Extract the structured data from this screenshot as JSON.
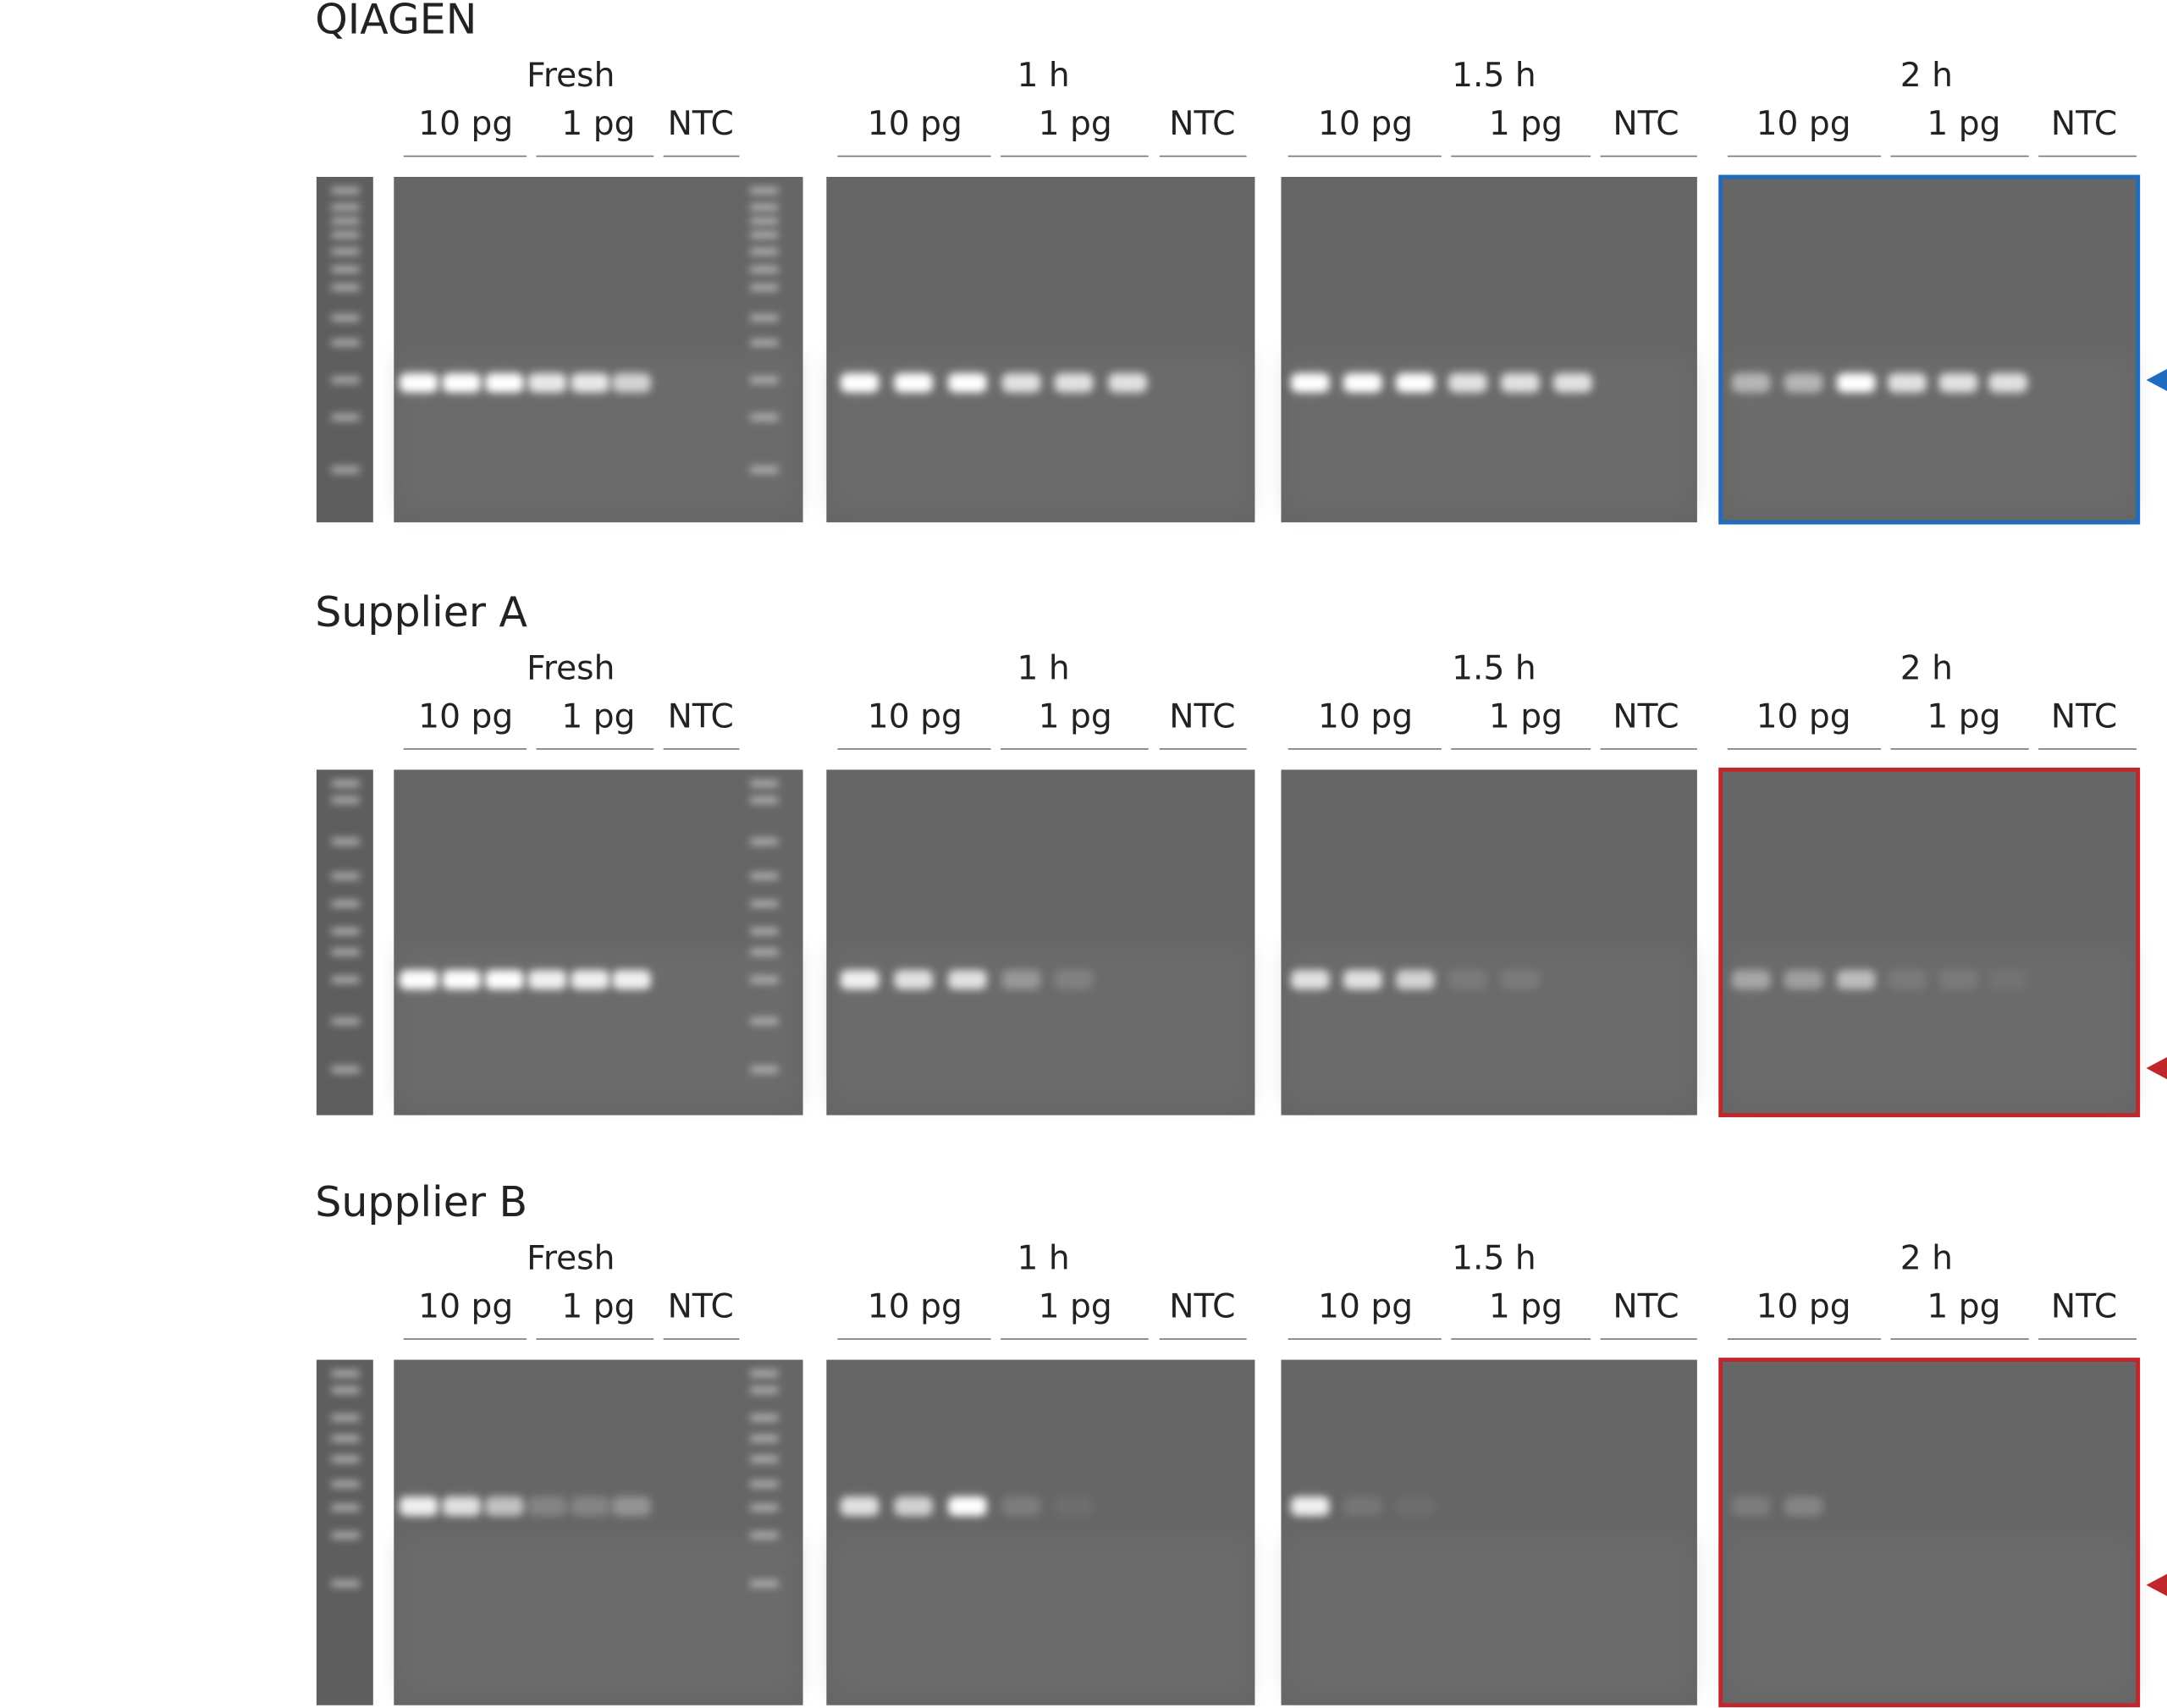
{
  "panels": [
    {
      "title": "QIAGEN",
      "groups": [
        {
          "time": "Fresh",
          "lanes": [
            "10 pg",
            "1 pg",
            "NTC"
          ]
        },
        {
          "time": "1 h",
          "lanes": [
            "10 pg",
            "1 pg",
            "NTC"
          ]
        },
        {
          "time": "1.5 h",
          "lanes": [
            "10 pg",
            "1 pg",
            "NTC"
          ]
        },
        {
          "time": "2 h",
          "lanes": [
            "10 pg",
            "1 pg",
            "NTC"
          ]
        }
      ]
    },
    {
      "title": "Supplier A",
      "groups": [
        {
          "time": "Fresh",
          "lanes": [
            "10 pg",
            "1 pg",
            "NTC"
          ]
        },
        {
          "time": "1 h",
          "lanes": [
            "10 pg",
            "1 pg",
            "NTC"
          ]
        },
        {
          "time": "1.5 h",
          "lanes": [
            "10 pg",
            "1 pg",
            "NTC"
          ]
        },
        {
          "time": "2 h",
          "lanes": [
            "10 pg",
            "1 pg",
            "NTC"
          ]
        }
      ]
    },
    {
      "title": "Supplier B",
      "groups": [
        {
          "time": "Fresh",
          "lanes": [
            "10 pg",
            "1 pg",
            "NTC"
          ]
        },
        {
          "time": "1 h",
          "lanes": [
            "10 pg",
            "1 pg",
            "NTC"
          ]
        },
        {
          "time": "1.5 h",
          "lanes": [
            "10 pg",
            "1 pg",
            "NTC"
          ]
        },
        {
          "time": "2 h",
          "lanes": [
            "10 pg",
            "1 pg",
            "NTC"
          ]
        }
      ]
    }
  ]
}
